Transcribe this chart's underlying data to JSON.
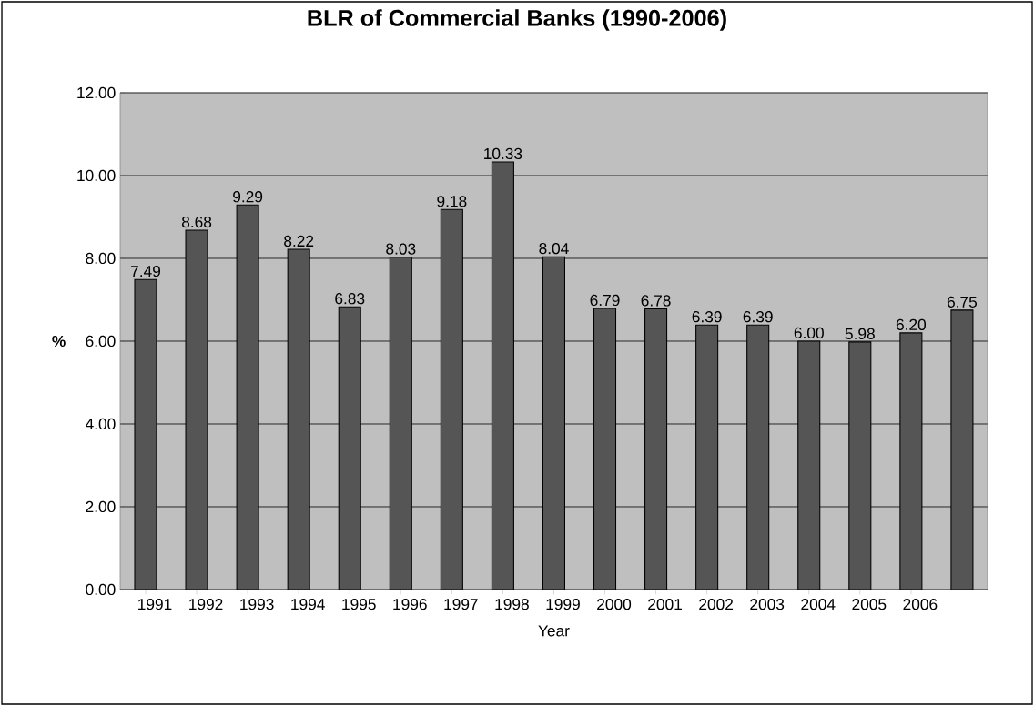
{
  "chart_data": {
    "type": "bar",
    "title": "BLR of Commercial Banks (1990-2006)",
    "xlabel": "Year",
    "ylabel": "%",
    "categories": [
      "1991",
      "1992",
      "1993",
      "1994",
      "1995",
      "1996",
      "1997",
      "1998",
      "1999",
      "2000",
      "2001",
      "2002",
      "2003",
      "2004",
      "2005",
      "2006",
      null
    ],
    "values": [
      7.49,
      8.68,
      9.29,
      8.22,
      6.83,
      8.03,
      9.18,
      10.33,
      8.04,
      6.79,
      6.78,
      6.39,
      6.39,
      6.0,
      5.98,
      6.2,
      6.75
    ],
    "value_labels": [
      "7.49",
      "8.68",
      "9.29",
      "8.22",
      "6.83",
      "8.03",
      "9.18",
      "10.33",
      "8.04",
      "6.79",
      "6.78",
      "6.39",
      "6.39",
      "6.00",
      "5.98",
      "6.20",
      "6.75"
    ],
    "color": "#555555",
    "ylim": [
      0,
      12
    ],
    "yticks": [
      {
        "value": 0,
        "label": "0.00"
      },
      {
        "value": 2,
        "label": "2.00"
      },
      {
        "value": 4,
        "label": "4.00"
      },
      {
        "value": 6,
        "label": "6.00"
      },
      {
        "value": 8,
        "label": "8.00"
      },
      {
        "value": 10,
        "label": "10.00"
      },
      {
        "value": 12,
        "label": "12.00"
      }
    ],
    "grid": "y"
  }
}
